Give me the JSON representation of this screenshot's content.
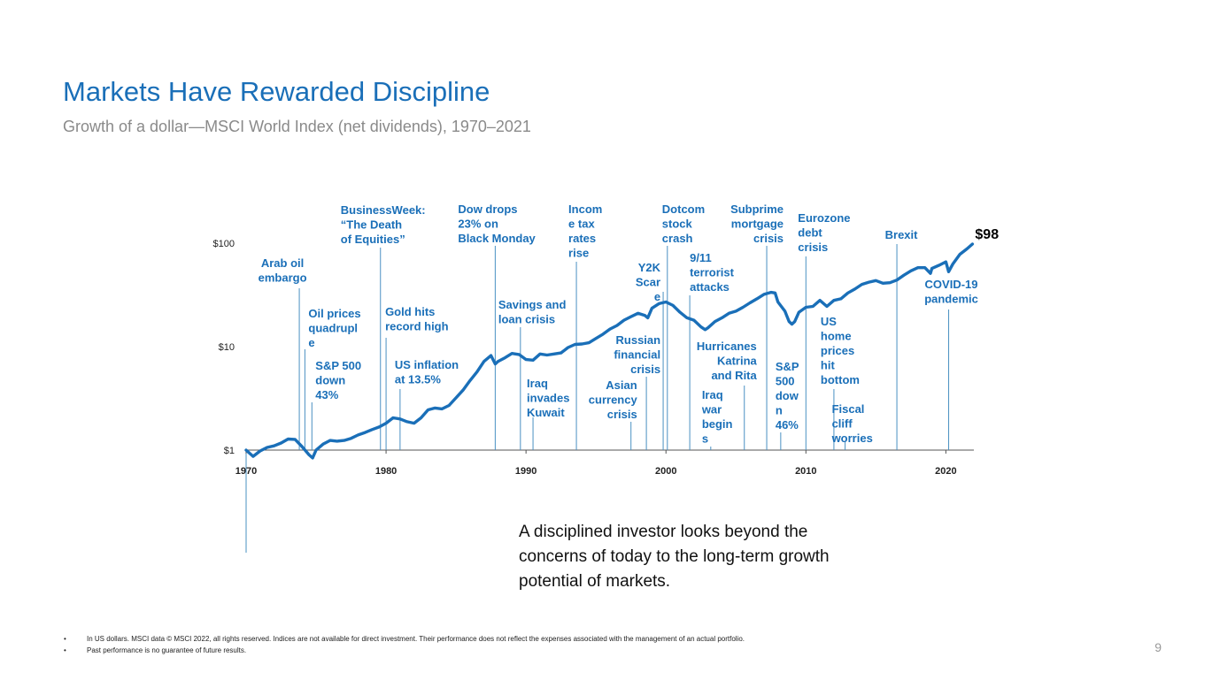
{
  "title": "Markets Have Rewarded Discipline",
  "subtitle": "Growth of a dollar—MSCI World Index (net dividends), 1970–2021",
  "callout": "A disciplined investor looks beyond the concerns of today to the long-term growth potential of markets.",
  "footnotes": [
    "In US dollars. MSCI data © MSCI 2022, all rights reserved. Indices are not available for direct investment. Their performance does not reflect the expenses associated with the management of an actual portfolio.",
    "Past performance is no guarantee of future results."
  ],
  "page_number": "9",
  "colors": {
    "accent": "#1a6fb8",
    "line": "#1a6fb8",
    "guide": "#4a90c2"
  },
  "chart_data": {
    "type": "line",
    "scale": "log",
    "xlim": [
      1970,
      2022
    ],
    "ylim": [
      1,
      100
    ],
    "x_ticks": [
      1970,
      1980,
      1990,
      2000,
      2010,
      2020
    ],
    "x_tick_labels": [
      "1970",
      "1980",
      "1990",
      "2000",
      "2010",
      "2020"
    ],
    "y_ticks": [
      1,
      10,
      100
    ],
    "y_tick_labels": [
      "$1",
      "$10",
      "$100"
    ],
    "final_label": "$98",
    "series": [
      {
        "x": [
          1970,
          1970.5,
          1971,
          1971.5,
          1972,
          1972.5,
          1973,
          1973.5,
          1974,
          1974.5,
          1974.75,
          1975,
          1975.5,
          1976,
          1976.5,
          1977,
          1977.5,
          1978,
          1978.5,
          1979,
          1979.5,
          1980,
          1980.5,
          1981,
          1981.5,
          1982,
          1982.5,
          1983,
          1983.5,
          1984,
          1984.5,
          1985,
          1985.5,
          1986,
          1986.5,
          1987,
          1987.5,
          1987.8,
          1988,
          1988.5,
          1989,
          1989.5,
          1990,
          1990.5,
          1991,
          1991.5,
          1992,
          1992.5,
          1993,
          1993.5,
          1994,
          1994.5,
          1995,
          1995.5,
          1996,
          1996.5,
          1997,
          1997.5,
          1998,
          1998.5,
          1998.7,
          1999,
          1999.5,
          2000,
          2000.5,
          2001,
          2001.5,
          2002,
          2002.5,
          2002.8,
          2003,
          2003.5,
          2004,
          2004.5,
          2005,
          2005.5,
          2006,
          2006.5,
          2007,
          2007.5,
          2007.8,
          2008,
          2008.5,
          2008.8,
          2009,
          2009.2,
          2009.5,
          2010,
          2010.5,
          2011,
          2011.5,
          2012,
          2012.5,
          2013,
          2013.5,
          2014,
          2014.5,
          2015,
          2015.5,
          2016,
          2016.5,
          2017,
          2017.5,
          2018,
          2018.5,
          2018.9,
          2019,
          2019.5,
          2020,
          2020.2,
          2020.5,
          2021,
          2021.5,
          2021.9
        ],
        "values": [
          1.0,
          0.87,
          0.98,
          1.06,
          1.1,
          1.17,
          1.28,
          1.27,
          1.08,
          0.9,
          0.84,
          1.0,
          1.14,
          1.24,
          1.22,
          1.24,
          1.3,
          1.4,
          1.48,
          1.58,
          1.67,
          1.82,
          2.05,
          2.0,
          1.88,
          1.82,
          2.05,
          2.45,
          2.55,
          2.5,
          2.7,
          3.2,
          3.8,
          4.7,
          5.7,
          7.2,
          8.2,
          6.8,
          7.2,
          7.8,
          8.6,
          8.4,
          7.5,
          7.4,
          8.5,
          8.3,
          8.5,
          8.7,
          9.8,
          10.5,
          10.6,
          10.9,
          12.0,
          13.2,
          14.8,
          16.0,
          18.0,
          19.5,
          21.0,
          20.0,
          19.0,
          23.5,
          26.0,
          27.0,
          25.0,
          21.5,
          19.0,
          18.0,
          15.5,
          14.6,
          15.2,
          17.5,
          19.0,
          21.0,
          22.0,
          24.0,
          26.5,
          29.0,
          32.0,
          33.5,
          33.0,
          27.0,
          22.0,
          17.5,
          16.5,
          17.5,
          21.5,
          24.0,
          24.5,
          28.0,
          24.5,
          28.0,
          29.0,
          33.0,
          36.0,
          40.0,
          42.0,
          43.5,
          41.0,
          41.5,
          44.0,
          49.0,
          54.0,
          58.0,
          58.0,
          51.0,
          57.0,
          61.0,
          66.0,
          53.0,
          63.0,
          78.0,
          88.0,
          98.0
        ]
      }
    ],
    "annotations": [
      {
        "text": [
          "Arab oil",
          "embargo"
        ],
        "year": 1973.8,
        "align": "middle"
      },
      {
        "text": [
          "Oil prices",
          "quadrupl",
          "e"
        ],
        "year": 1974.2,
        "align": "start"
      },
      {
        "text": [
          "S&P 500",
          "down",
          "43%"
        ],
        "year": 1974.7,
        "align": "start"
      },
      {
        "text": [
          "BusinessWeek:",
          "“The Death",
          "of Equities”"
        ],
        "year": 1979.6,
        "align": "start"
      },
      {
        "text": [
          "Gold hits",
          "record high"
        ],
        "year": 1980.0,
        "align": "start"
      },
      {
        "text": [
          "US inflation",
          "at 13.5%"
        ],
        "year": 1981.0,
        "align": "start"
      },
      {
        "text": [
          "Dow drops",
          "23% on",
          "Black Monday"
        ],
        "year": 1987.8,
        "align": "start"
      },
      {
        "text": [
          "Savings and",
          "loan crisis"
        ],
        "year": 1989.6,
        "align": "start"
      },
      {
        "text": [
          "Iraq",
          "invades",
          "Kuwait"
        ],
        "year": 1990.5,
        "align": "start"
      },
      {
        "text": [
          "Incom",
          "e tax",
          "rates",
          "rise"
        ],
        "year": 1993.6,
        "align": "start"
      },
      {
        "text": [
          "Asian",
          "currency",
          "crisis"
        ],
        "year": 1997.5,
        "align": "end"
      },
      {
        "text": [
          "Russian",
          "financial",
          "crisis"
        ],
        "year": 1998.6,
        "align": "end"
      },
      {
        "text": [
          "Y2K",
          "Scar",
          "e"
        ],
        "year": 1999.8,
        "align": "end"
      },
      {
        "text": [
          "Dotcom",
          "stock",
          "crash"
        ],
        "year": 2000.1,
        "align": "start"
      },
      {
        "text": [
          "9/11",
          "terrorist",
          "attacks"
        ],
        "year": 2001.7,
        "align": "start"
      },
      {
        "text": [
          "Iraq",
          "war",
          "begin",
          "s"
        ],
        "year": 2003.2,
        "align": "start"
      },
      {
        "text": [
          "Hurricanes",
          "Katrina",
          "and Rita"
        ],
        "year": 2005.6,
        "align": "end"
      },
      {
        "text": [
          "Subprime",
          "mortgage",
          "crisis"
        ],
        "year": 2007.2,
        "align": "end"
      },
      {
        "text": [
          "S&P",
          "500",
          "dow",
          "n",
          "46%"
        ],
        "year": 2008.2,
        "align": "start"
      },
      {
        "text": [
          "Eurozone",
          "debt",
          "crisis"
        ],
        "year": 2010.0,
        "align": "start"
      },
      {
        "text": [
          "US",
          "home",
          "prices",
          "hit",
          "bottom"
        ],
        "year": 2012.0,
        "align": "start"
      },
      {
        "text": [
          "Fiscal",
          "cliff",
          "worries"
        ],
        "year": 2012.8,
        "align": "start"
      },
      {
        "text": [
          "Brexit"
        ],
        "year": 2016.5,
        "align": "middle"
      },
      {
        "text": [
          "COVID-19",
          "pandemic"
        ],
        "year": 2020.2,
        "align": "middle"
      }
    ]
  }
}
